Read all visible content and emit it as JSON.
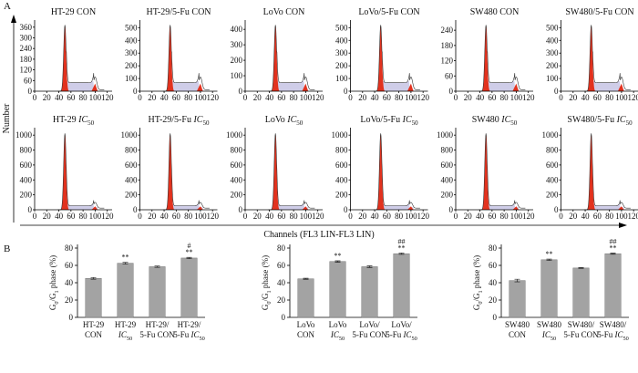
{
  "figure": {
    "panel_a_label": "A",
    "panel_b_label": "B",
    "y_label": "Number",
    "x_label": "Channels (FL3 LIN-FL3 LIN)"
  },
  "chart_data": [
    {
      "type": "histogram",
      "title": [
        "HT-29 CON"
      ],
      "ylim": [
        0,
        400
      ],
      "yticks": [
        0,
        60,
        120,
        180,
        240,
        300,
        360
      ],
      "xlim": [
        0,
        128
      ],
      "xticks": [
        0,
        20,
        40,
        60,
        80,
        100,
        120
      ]
    },
    {
      "type": "histogram",
      "title": [
        "HT-29/5-Fu CON"
      ],
      "ylim": [
        0,
        560
      ],
      "yticks": [
        0,
        100,
        200,
        300,
        400,
        500
      ],
      "xlim": [
        0,
        128
      ],
      "xticks": [
        0,
        20,
        40,
        60,
        80,
        100,
        120
      ]
    },
    {
      "type": "histogram",
      "title": [
        "LoVo CON"
      ],
      "ylim": [
        0,
        460
      ],
      "yticks": [
        0,
        100,
        200,
        300,
        400
      ],
      "xlim": [
        0,
        128
      ],
      "xticks": [
        0,
        20,
        40,
        60,
        80,
        100,
        120
      ]
    },
    {
      "type": "histogram",
      "title": [
        "LoVo/5-Fu CON"
      ],
      "ylim": [
        0,
        560
      ],
      "yticks": [
        0,
        100,
        200,
        300,
        400,
        500
      ],
      "xlim": [
        0,
        128
      ],
      "xticks": [
        0,
        20,
        40,
        60,
        80,
        100,
        120
      ]
    },
    {
      "type": "histogram",
      "title": [
        "SW480 CON"
      ],
      "ylim": [
        0,
        280
      ],
      "yticks": [
        0,
        60,
        120,
        180,
        240
      ],
      "xlim": [
        0,
        128
      ],
      "xticks": [
        0,
        20,
        40,
        60,
        80,
        100,
        120
      ]
    },
    {
      "type": "histogram",
      "title": [
        "SW480/5-Fu CON"
      ],
      "ylim": [
        0,
        560
      ],
      "yticks": [
        0,
        100,
        200,
        300,
        400,
        500
      ],
      "xlim": [
        0,
        128
      ],
      "xticks": [
        0,
        20,
        40,
        60,
        80,
        100,
        120
      ]
    },
    {
      "type": "histogram",
      "title": [
        "HT-29 ",
        {
          "text": "IC",
          "style": "italic"
        },
        {
          "text": "50",
          "style": "sub"
        }
      ],
      "ylim": [
        0,
        1100
      ],
      "yticks": [
        0,
        200,
        400,
        600,
        800,
        1000
      ],
      "xlim": [
        0,
        128
      ],
      "xticks": [
        0,
        20,
        40,
        60,
        80,
        100,
        120
      ]
    },
    {
      "type": "histogram",
      "title": [
        "HT-29/5-Fu ",
        {
          "text": "IC",
          "style": "italic"
        },
        {
          "text": "50",
          "style": "sub"
        }
      ],
      "ylim": [
        0,
        1100
      ],
      "yticks": [
        0,
        200,
        400,
        600,
        800,
        1000
      ],
      "xlim": [
        0,
        128
      ],
      "xticks": [
        0,
        20,
        40,
        60,
        80,
        100,
        120
      ]
    },
    {
      "type": "histogram",
      "title": [
        "LoVo ",
        {
          "text": "IC",
          "style": "italic"
        },
        {
          "text": "50",
          "style": "sub"
        }
      ],
      "ylim": [
        0,
        1100
      ],
      "yticks": [
        0,
        200,
        400,
        600,
        800,
        1000
      ],
      "xlim": [
        0,
        128
      ],
      "xticks": [
        0,
        20,
        40,
        60,
        80,
        100,
        120
      ]
    },
    {
      "type": "histogram",
      "title": [
        "LoVo/5-Fu ",
        {
          "text": "IC",
          "style": "italic"
        },
        {
          "text": "50",
          "style": "sub"
        }
      ],
      "ylim": [
        0,
        1100
      ],
      "yticks": [
        0,
        200,
        400,
        600,
        800,
        1000
      ],
      "xlim": [
        0,
        128
      ],
      "xticks": [
        0,
        20,
        40,
        60,
        80,
        100,
        120
      ]
    },
    {
      "type": "histogram",
      "title": [
        "SW480 ",
        {
          "text": "IC",
          "style": "italic"
        },
        {
          "text": "50",
          "style": "sub"
        }
      ],
      "ylim": [
        0,
        1100
      ],
      "yticks": [
        0,
        200,
        400,
        600,
        800,
        1000
      ],
      "xlim": [
        0,
        128
      ],
      "xticks": [
        0,
        20,
        40,
        60,
        80,
        100,
        120
      ]
    },
    {
      "type": "histogram",
      "title": [
        "SW480/5-Fu ",
        {
          "text": "IC",
          "style": "italic"
        },
        {
          "text": "50",
          "style": "sub"
        }
      ],
      "ylim": [
        0,
        1100
      ],
      "yticks": [
        0,
        200,
        400,
        600,
        800,
        1000
      ],
      "xlim": [
        0,
        128
      ],
      "xticks": [
        0,
        20,
        40,
        60,
        80,
        100,
        120
      ]
    },
    {
      "type": "bar",
      "y_label": [
        "G",
        {
          "text": "0",
          "style": "sub"
        },
        "/G",
        {
          "text": "1",
          "style": "sub"
        },
        " phase (%)"
      ],
      "categories": [
        [
          [
            "HT-29"
          ],
          [
            "CON"
          ]
        ],
        [
          [
            "HT-29"
          ],
          [
            {
              "text": "IC",
              "style": "italic"
            },
            {
              "text": "50",
              "style": "sub"
            }
          ]
        ],
        [
          [
            "HT-29/"
          ],
          [
            "5-Fu CON"
          ]
        ],
        [
          [
            "HT-29/"
          ],
          [
            "5-Fu ",
            {
              "text": "IC",
              "style": "italic"
            },
            {
              "text": "50",
              "style": "sub"
            }
          ]
        ]
      ],
      "values": [
        45,
        62.5,
        58.5,
        68.5
      ],
      "errors": [
        1,
        1,
        0.8,
        0.8
      ],
      "annotations": [
        [],
        [
          "**"
        ],
        [],
        [
          "#",
          "**"
        ]
      ],
      "ylim": [
        0,
        80
      ],
      "yticks": [
        0,
        20,
        40,
        60,
        80
      ],
      "color": "#a3a3a3"
    },
    {
      "type": "bar",
      "y_label": [
        "G",
        {
          "text": "0",
          "style": "sub"
        },
        "/G",
        {
          "text": "1",
          "style": "sub"
        },
        " phase (%)"
      ],
      "categories": [
        [
          [
            "LoVo"
          ],
          [
            "CON"
          ]
        ],
        [
          [
            "LoVo"
          ],
          [
            {
              "text": "IC",
              "style": "italic"
            },
            {
              "text": "50",
              "style": "sub"
            }
          ]
        ],
        [
          [
            "LoVo/"
          ],
          [
            "5-Fu CON"
          ]
        ],
        [
          [
            "LoVo/"
          ],
          [
            "5-Fu ",
            {
              "text": "IC",
              "style": "italic"
            },
            {
              "text": "50",
              "style": "sub"
            }
          ]
        ]
      ],
      "values": [
        44.5,
        64.5,
        58.5,
        73.5
      ],
      "errors": [
        0.6,
        0.8,
        1,
        0.8
      ],
      "annotations": [
        [],
        [
          "**"
        ],
        [],
        [
          "##",
          "**"
        ]
      ],
      "ylim": [
        0,
        80
      ],
      "yticks": [
        0,
        20,
        40,
        60,
        80
      ],
      "color": "#a3a3a3"
    },
    {
      "type": "bar",
      "y_label": [
        "G",
        {
          "text": "0",
          "style": "sub"
        },
        "/G",
        {
          "text": "1",
          "style": "sub"
        },
        " phase (%)"
      ],
      "categories": [
        [
          [
            "SW480"
          ],
          [
            "CON"
          ]
        ],
        [
          [
            "SW480"
          ],
          [
            {
              "text": "IC",
              "style": "italic"
            },
            {
              "text": "50",
              "style": "sub"
            }
          ]
        ],
        [
          [
            "SW480/"
          ],
          [
            "5-Fu CON"
          ]
        ],
        [
          [
            "SW480/"
          ],
          [
            "5-Fu ",
            {
              "text": "IC",
              "style": "italic"
            },
            {
              "text": "50",
              "style": "sub"
            }
          ]
        ]
      ],
      "values": [
        42.5,
        66.5,
        57,
        73.5
      ],
      "errors": [
        1.5,
        0.8,
        0.5,
        0.6
      ],
      "annotations": [
        [],
        [
          "**"
        ],
        [],
        [
          "##",
          "**"
        ]
      ],
      "ylim": [
        0,
        80
      ],
      "yticks": [
        0,
        20,
        40,
        60,
        80
      ],
      "color": "#a3a3a3"
    }
  ]
}
